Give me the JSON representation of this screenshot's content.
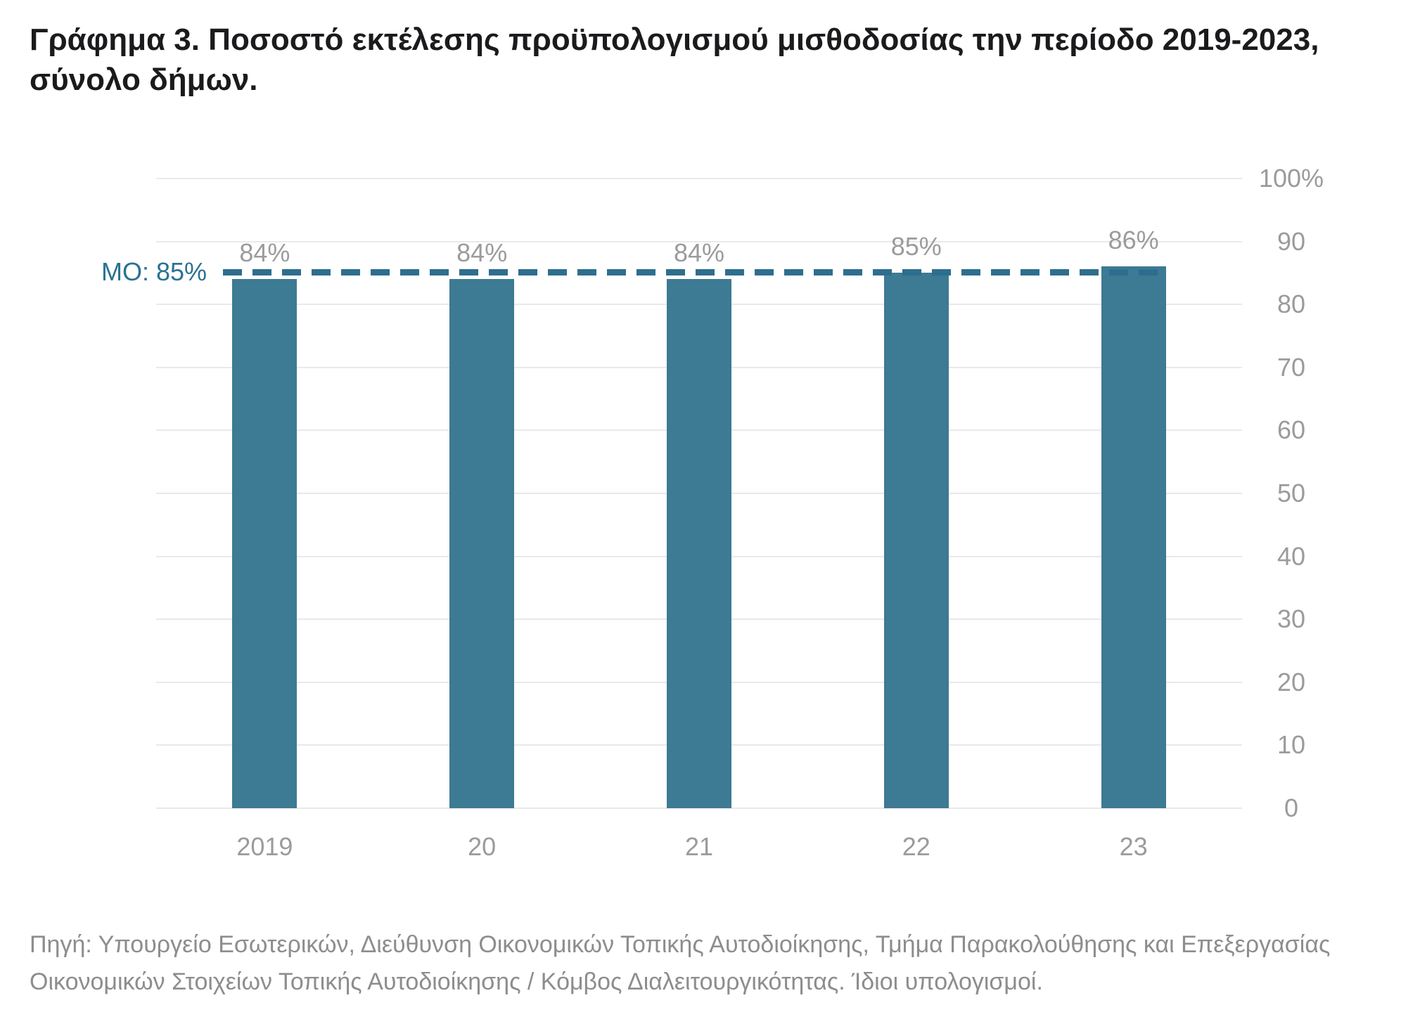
{
  "title": {
    "line1": "Γράφημα 3. Ποσοστό εκτέλεσης προϋπολογισμού μισθοδοσίας την περίοδο 2019-2023,",
    "line2": "σύνολο δήμων."
  },
  "chart_data": {
    "type": "bar",
    "title": "Γράφημα 3. Ποσοστό εκτέλεσης προϋπολογισμού μισθοδοσίας την περίοδο 2019-2023, σύνολο δήμων.",
    "categories": [
      "2019",
      "20",
      "21",
      "22",
      "23"
    ],
    "values": [
      84,
      84,
      84,
      85,
      86
    ],
    "value_labels": [
      "84%",
      "84%",
      "84%",
      "85%",
      "86%"
    ],
    "mean_line": {
      "value": 85,
      "label": "ΜΟ: 85%",
      "color": "#2d6e8f",
      "label_color": "#2b7292"
    },
    "ylim": [
      0,
      100
    ],
    "ytick_step": 10,
    "ytick_labels": [
      "0",
      "10",
      "20",
      "30",
      "40",
      "50",
      "60",
      "70",
      "80",
      "90",
      "100%"
    ],
    "yaxis_side": "right",
    "grid": true,
    "legend": "none",
    "bar_color": "#3d7a93",
    "grid_color": "#e9e9e9",
    "tick_label_color": "#9b9b9b",
    "value_label_color": "#9b9b9b"
  },
  "source": {
    "line1": "Πηγή: Υπουργείο Εσωτερικών, Διεύθυνση Οικονομικών Τοπικής Αυτοδιοίκησης, Τμήμα Παρακολούθησης και Επεξεργασίας",
    "line2": "Οικονομικών Στοιχείων Τοπικής Αυτοδιοίκησης / Κόμβος Διαλειτουργικότητας. Ίδιοι υπολογισμοί."
  }
}
